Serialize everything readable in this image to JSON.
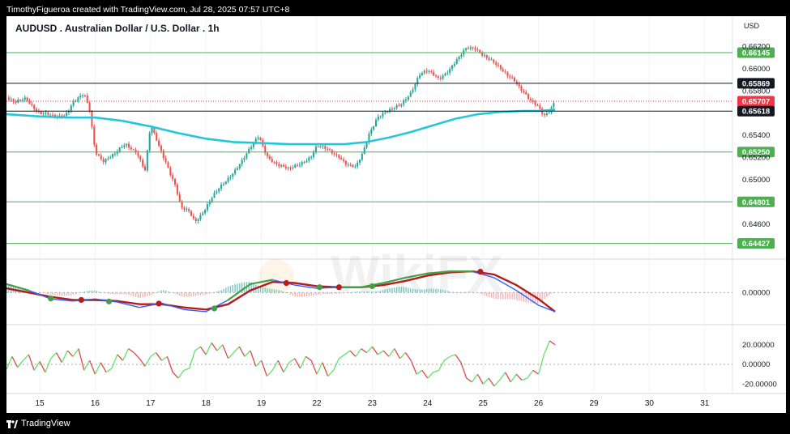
{
  "header": {
    "credit": "TimothyFigueroa created with TradingView.com, Jul 28, 2025 07:57 UTC+8"
  },
  "footer": {
    "brand": "TradingView"
  },
  "watermark": "WikiFX",
  "colors": {
    "up": "#26a69a",
    "down": "#ef5350",
    "ema": "#26c6da",
    "hline": "#4caf50",
    "macd": "#2962ff",
    "signal": "#b71c1c",
    "osc_up": "#66e066",
    "osc_down": "#e04848",
    "last": "#f23645"
  },
  "chart_data": [
    {
      "type": "candlestick",
      "title": "AUDUSD . Australian Dollar / U.S. Dollar . 1h",
      "currency_label": "USD",
      "y_ticks": [
        "0.66200",
        "0.66000",
        "0.65800",
        "0.65400",
        "0.65200",
        "0.65000",
        "0.64600"
      ],
      "y_tick_values": [
        0.662,
        0.66,
        0.658,
        0.654,
        0.652,
        0.65,
        0.646
      ],
      "ylim": [
        0.643,
        0.664
      ],
      "x_ticks": [
        "15",
        "16",
        "17",
        "18",
        "19",
        "22",
        "23",
        "24",
        "25",
        "26",
        "29",
        "30",
        "31"
      ],
      "x_tick_positions": [
        0,
        1,
        2,
        3,
        4,
        5,
        6,
        7,
        8,
        9,
        10,
        11,
        12
      ],
      "xlim": [
        -0.6,
        12.5
      ],
      "last_x": 9.3,
      "close_anchors": [
        [
          -0.6,
          0.6574
        ],
        [
          -0.45,
          0.6568
        ],
        [
          -0.25,
          0.6574
        ],
        [
          0.0,
          0.656
        ],
        [
          0.25,
          0.6556
        ],
        [
          0.45,
          0.6559
        ],
        [
          0.6,
          0.657
        ],
        [
          0.8,
          0.6576
        ],
        [
          0.9,
          0.6562
        ],
        [
          1.0,
          0.6526
        ],
        [
          1.15,
          0.6518
        ],
        [
          1.35,
          0.6522
        ],
        [
          1.55,
          0.6532
        ],
        [
          1.75,
          0.6526
        ],
        [
          1.9,
          0.6508
        ],
        [
          2.0,
          0.6548
        ],
        [
          2.15,
          0.653
        ],
        [
          2.3,
          0.6514
        ],
        [
          2.45,
          0.6495
        ],
        [
          2.55,
          0.6474
        ],
        [
          2.7,
          0.647
        ],
        [
          2.8,
          0.6462
        ],
        [
          2.92,
          0.647
        ],
        [
          3.1,
          0.6484
        ],
        [
          3.35,
          0.6497
        ],
        [
          3.6,
          0.6515
        ],
        [
          3.8,
          0.6528
        ],
        [
          3.95,
          0.6538
        ],
        [
          4.1,
          0.6522
        ],
        [
          4.3,
          0.6514
        ],
        [
          4.5,
          0.6508
        ],
        [
          4.7,
          0.6515
        ],
        [
          4.9,
          0.6522
        ],
        [
          5.0,
          0.653
        ],
        [
          5.2,
          0.6526
        ],
        [
          5.4,
          0.6522
        ],
        [
          5.55,
          0.6514
        ],
        [
          5.7,
          0.651
        ],
        [
          5.82,
          0.6522
        ],
        [
          5.95,
          0.6543
        ],
        [
          6.1,
          0.6558
        ],
        [
          6.35,
          0.6562
        ],
        [
          6.5,
          0.6567
        ],
        [
          6.7,
          0.658
        ],
        [
          6.85,
          0.6594
        ],
        [
          7.0,
          0.6597
        ],
        [
          7.2,
          0.6592
        ],
        [
          7.4,
          0.66
        ],
        [
          7.55,
          0.6608
        ],
        [
          7.7,
          0.6618
        ],
        [
          7.85,
          0.662
        ],
        [
          8.0,
          0.6613
        ],
        [
          8.15,
          0.6606
        ],
        [
          8.35,
          0.6598
        ],
        [
          8.55,
          0.6592
        ],
        [
          8.7,
          0.658
        ],
        [
          8.85,
          0.657
        ],
        [
          9.0,
          0.6566
        ],
        [
          9.1,
          0.6559
        ],
        [
          9.2,
          0.6563
        ],
        [
          9.3,
          0.6571
        ]
      ],
      "ema": {
        "x": [
          -0.6,
          0.0,
          0.5,
          1.0,
          1.5,
          2.0,
          2.5,
          3.0,
          3.5,
          4.0,
          4.5,
          5.0,
          5.5,
          5.9,
          6.3,
          6.7,
          7.1,
          7.5,
          7.9,
          8.3,
          8.7,
          9.0,
          9.3
        ],
        "y": [
          0.6559,
          0.6557,
          0.6556,
          0.6556,
          0.6553,
          0.6548,
          0.6542,
          0.6537,
          0.6534,
          0.6533,
          0.6532,
          0.6532,
          0.6532,
          0.6534,
          0.6538,
          0.6543,
          0.6549,
          0.6555,
          0.6559,
          0.6561,
          0.6562,
          0.6562,
          0.6563
        ]
      },
      "price_lines": [
        {
          "label": "0.66145",
          "value": 0.66145,
          "style": "green-box"
        },
        {
          "label": "0.65869",
          "value": 0.65869,
          "style": "black-box"
        },
        {
          "label": "0.65707",
          "value": 0.65707,
          "style": "red-box"
        },
        {
          "label": "0.65618",
          "value": 0.65618,
          "style": "black-box"
        },
        {
          "label": "0.65250",
          "value": 0.6525,
          "style": "green-box"
        },
        {
          "label": "0.64801",
          "value": 0.64801,
          "style": "green-box"
        },
        {
          "label": "0.64427",
          "value": 0.64427,
          "style": "green-box"
        }
      ]
    },
    {
      "type": "line",
      "name": "macd-pane",
      "y_ticks": [
        "0.00000"
      ],
      "y_tick_values": [
        0
      ],
      "ylim": [
        -1.4,
        1.5
      ],
      "macd": {
        "x": [
          -0.6,
          -0.2,
          0.2,
          0.6,
          1.0,
          1.4,
          1.8,
          2.2,
          2.6,
          3.0,
          3.4,
          3.8,
          4.2,
          4.6,
          5.0,
          5.4,
          5.8,
          6.2,
          6.6,
          7.0,
          7.4,
          7.8,
          8.2,
          8.6,
          9.0,
          9.3
        ],
        "y": [
          0.4,
          0.1,
          -0.3,
          -0.4,
          -0.3,
          -0.45,
          -0.7,
          -0.5,
          -0.8,
          -0.9,
          -0.35,
          0.4,
          0.6,
          0.35,
          0.2,
          0.25,
          0.25,
          0.45,
          0.7,
          0.9,
          1.0,
          1.0,
          0.7,
          0.1,
          -0.6,
          -0.9
        ]
      },
      "signal": {
        "x": [
          -0.6,
          -0.2,
          0.2,
          0.6,
          1.0,
          1.4,
          1.8,
          2.2,
          2.6,
          3.0,
          3.4,
          3.8,
          4.2,
          4.6,
          5.0,
          5.4,
          5.8,
          6.2,
          6.6,
          7.0,
          7.4,
          7.8,
          8.2,
          8.6,
          9.0,
          9.3
        ],
        "y": [
          0.2,
          0.0,
          -0.2,
          -0.35,
          -0.35,
          -0.4,
          -0.55,
          -0.55,
          -0.7,
          -0.8,
          -0.55,
          0.1,
          0.5,
          0.45,
          0.3,
          0.25,
          0.25,
          0.35,
          0.55,
          0.8,
          0.95,
          1.0,
          0.85,
          0.35,
          -0.3,
          -0.9
        ]
      },
      "crossovers": [
        {
          "x": 0.2,
          "y": -0.28,
          "dir": "up"
        },
        {
          "x": 0.75,
          "y": -0.35,
          "dir": "down"
        },
        {
          "x": 1.25,
          "y": -0.42,
          "dir": "up"
        },
        {
          "x": 2.15,
          "y": -0.52,
          "dir": "down"
        },
        {
          "x": 3.15,
          "y": -0.75,
          "dir": "up"
        },
        {
          "x": 4.45,
          "y": 0.45,
          "dir": "down"
        },
        {
          "x": 5.05,
          "y": 0.25,
          "dir": "up"
        },
        {
          "x": 5.4,
          "y": 0.25,
          "dir": "down"
        },
        {
          "x": 6.0,
          "y": 0.3,
          "dir": "up"
        },
        {
          "x": 7.95,
          "y": 0.98,
          "dir": "down"
        }
      ]
    },
    {
      "type": "line",
      "name": "oscillator-pane",
      "y_ticks": [
        "20.00000",
        "0.00000",
        "-20.00000"
      ],
      "y_tick_values": [
        20,
        0,
        -20
      ],
      "ylim": [
        -28,
        38
      ],
      "series": {
        "x": [
          -0.6,
          -0.5,
          -0.4,
          -0.3,
          -0.2,
          -0.1,
          0.0,
          0.1,
          0.2,
          0.3,
          0.4,
          0.5,
          0.6,
          0.7,
          0.8,
          0.9,
          1.0,
          1.1,
          1.2,
          1.3,
          1.4,
          1.5,
          1.6,
          1.7,
          1.8,
          1.9,
          2.0,
          2.1,
          2.2,
          2.3,
          2.4,
          2.5,
          2.6,
          2.7,
          2.8,
          2.9,
          3.0,
          3.1,
          3.2,
          3.3,
          3.4,
          3.5,
          3.6,
          3.7,
          3.8,
          3.9,
          4.0,
          4.1,
          4.2,
          4.3,
          4.4,
          4.5,
          4.6,
          4.7,
          4.8,
          4.9,
          5.0,
          5.1,
          5.2,
          5.3,
          5.4,
          5.5,
          5.6,
          5.7,
          5.8,
          5.9,
          6.0,
          6.1,
          6.2,
          6.3,
          6.4,
          6.5,
          6.6,
          6.7,
          6.8,
          6.9,
          7.0,
          7.1,
          7.2,
          7.3,
          7.4,
          7.5,
          7.6,
          7.7,
          7.8,
          7.9,
          8.0,
          8.1,
          8.2,
          8.3,
          8.4,
          8.5,
          8.6,
          8.7,
          8.8,
          8.9,
          9.0,
          9.1,
          9.2,
          9.3
        ],
        "y": [
          -5,
          8,
          -3,
          4,
          10,
          -6,
          3,
          -8,
          6,
          12,
          2,
          14,
          8,
          16,
          -6,
          4,
          -10,
          2,
          -8,
          -4,
          10,
          4,
          16,
          12,
          6,
          -2,
          8,
          12,
          4,
          8,
          -8,
          -14,
          -6,
          -4,
          14,
          18,
          10,
          22,
          14,
          20,
          6,
          12,
          18,
          8,
          14,
          -2,
          4,
          -12,
          -6,
          4,
          -8,
          2,
          6,
          -4,
          8,
          4,
          -10,
          2,
          -12,
          -6,
          6,
          10,
          14,
          8,
          16,
          12,
          18,
          10,
          14,
          8,
          16,
          6,
          12,
          4,
          -10,
          -6,
          -14,
          -8,
          -6,
          4,
          8,
          10,
          2,
          -14,
          -18,
          -10,
          -20,
          -14,
          -22,
          -16,
          -8,
          -18,
          -10,
          -16,
          -14,
          -6,
          -10,
          10,
          24,
          20
        ]
      }
    }
  ]
}
